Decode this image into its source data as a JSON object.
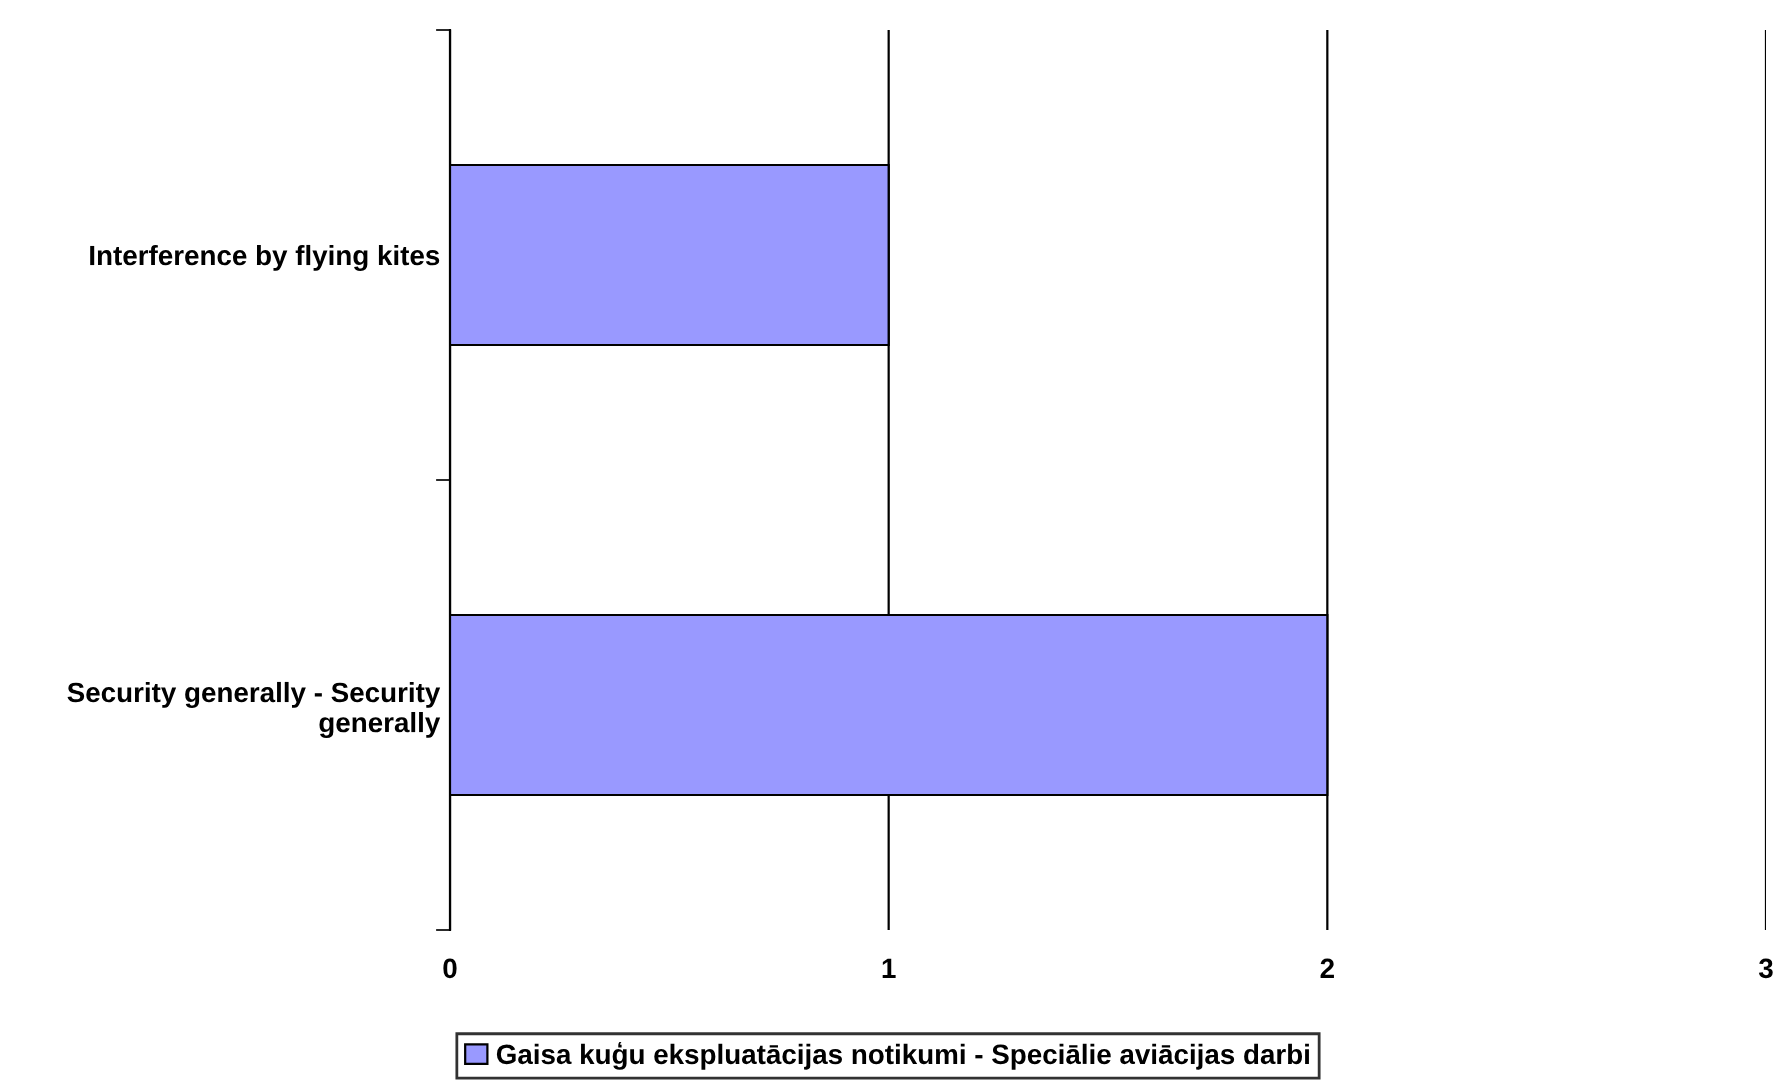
{
  "chart_data": {
    "type": "bar",
    "orientation": "horizontal",
    "categories": [
      "Interference by flying kites",
      "Security generally - Security generally"
    ],
    "series": [
      {
        "name": "Gaisa kuģu ekspluatācijas notikumi - Speciālie aviācijas darbi",
        "color": "#9999ff",
        "values": [
          1,
          2
        ]
      }
    ],
    "xlim": [
      0,
      3
    ],
    "xticks": [
      0,
      1,
      2,
      3
    ],
    "grid": "x",
    "legend": "bottom"
  }
}
